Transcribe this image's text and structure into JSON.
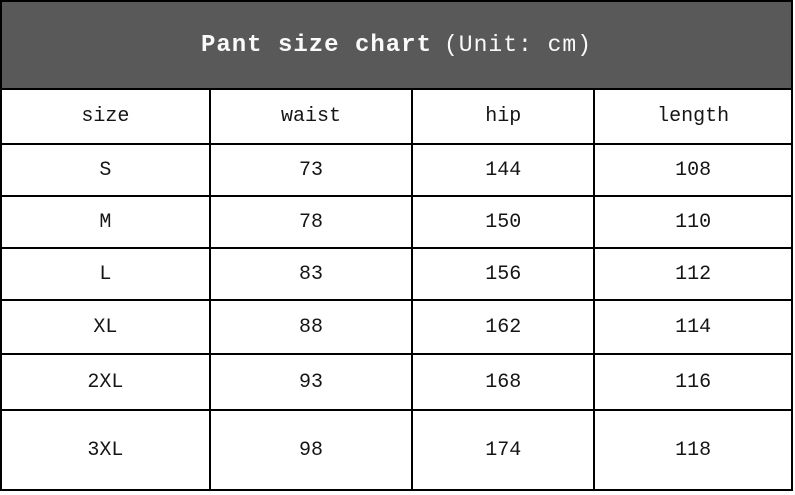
{
  "title": {
    "main": "Pant size chart",
    "unit": "(Unit: cm)"
  },
  "colors": {
    "header_bg": "#595959",
    "header_text": "#fafafa",
    "body_text": "#151515",
    "border": "#000000",
    "row_bg": "#ffffff"
  },
  "chart_data": {
    "type": "table",
    "title": "Pant size chart (Unit: cm)",
    "unit": "cm",
    "columns": [
      "size",
      "waist",
      "hip",
      "length"
    ],
    "rows": [
      [
        "S",
        73,
        144,
        108
      ],
      [
        "M",
        78,
        150,
        110
      ],
      [
        "L",
        83,
        156,
        112
      ],
      [
        "XL",
        88,
        162,
        114
      ],
      [
        "2XL",
        93,
        168,
        116
      ],
      [
        "3XL",
        98,
        174,
        118
      ]
    ]
  }
}
